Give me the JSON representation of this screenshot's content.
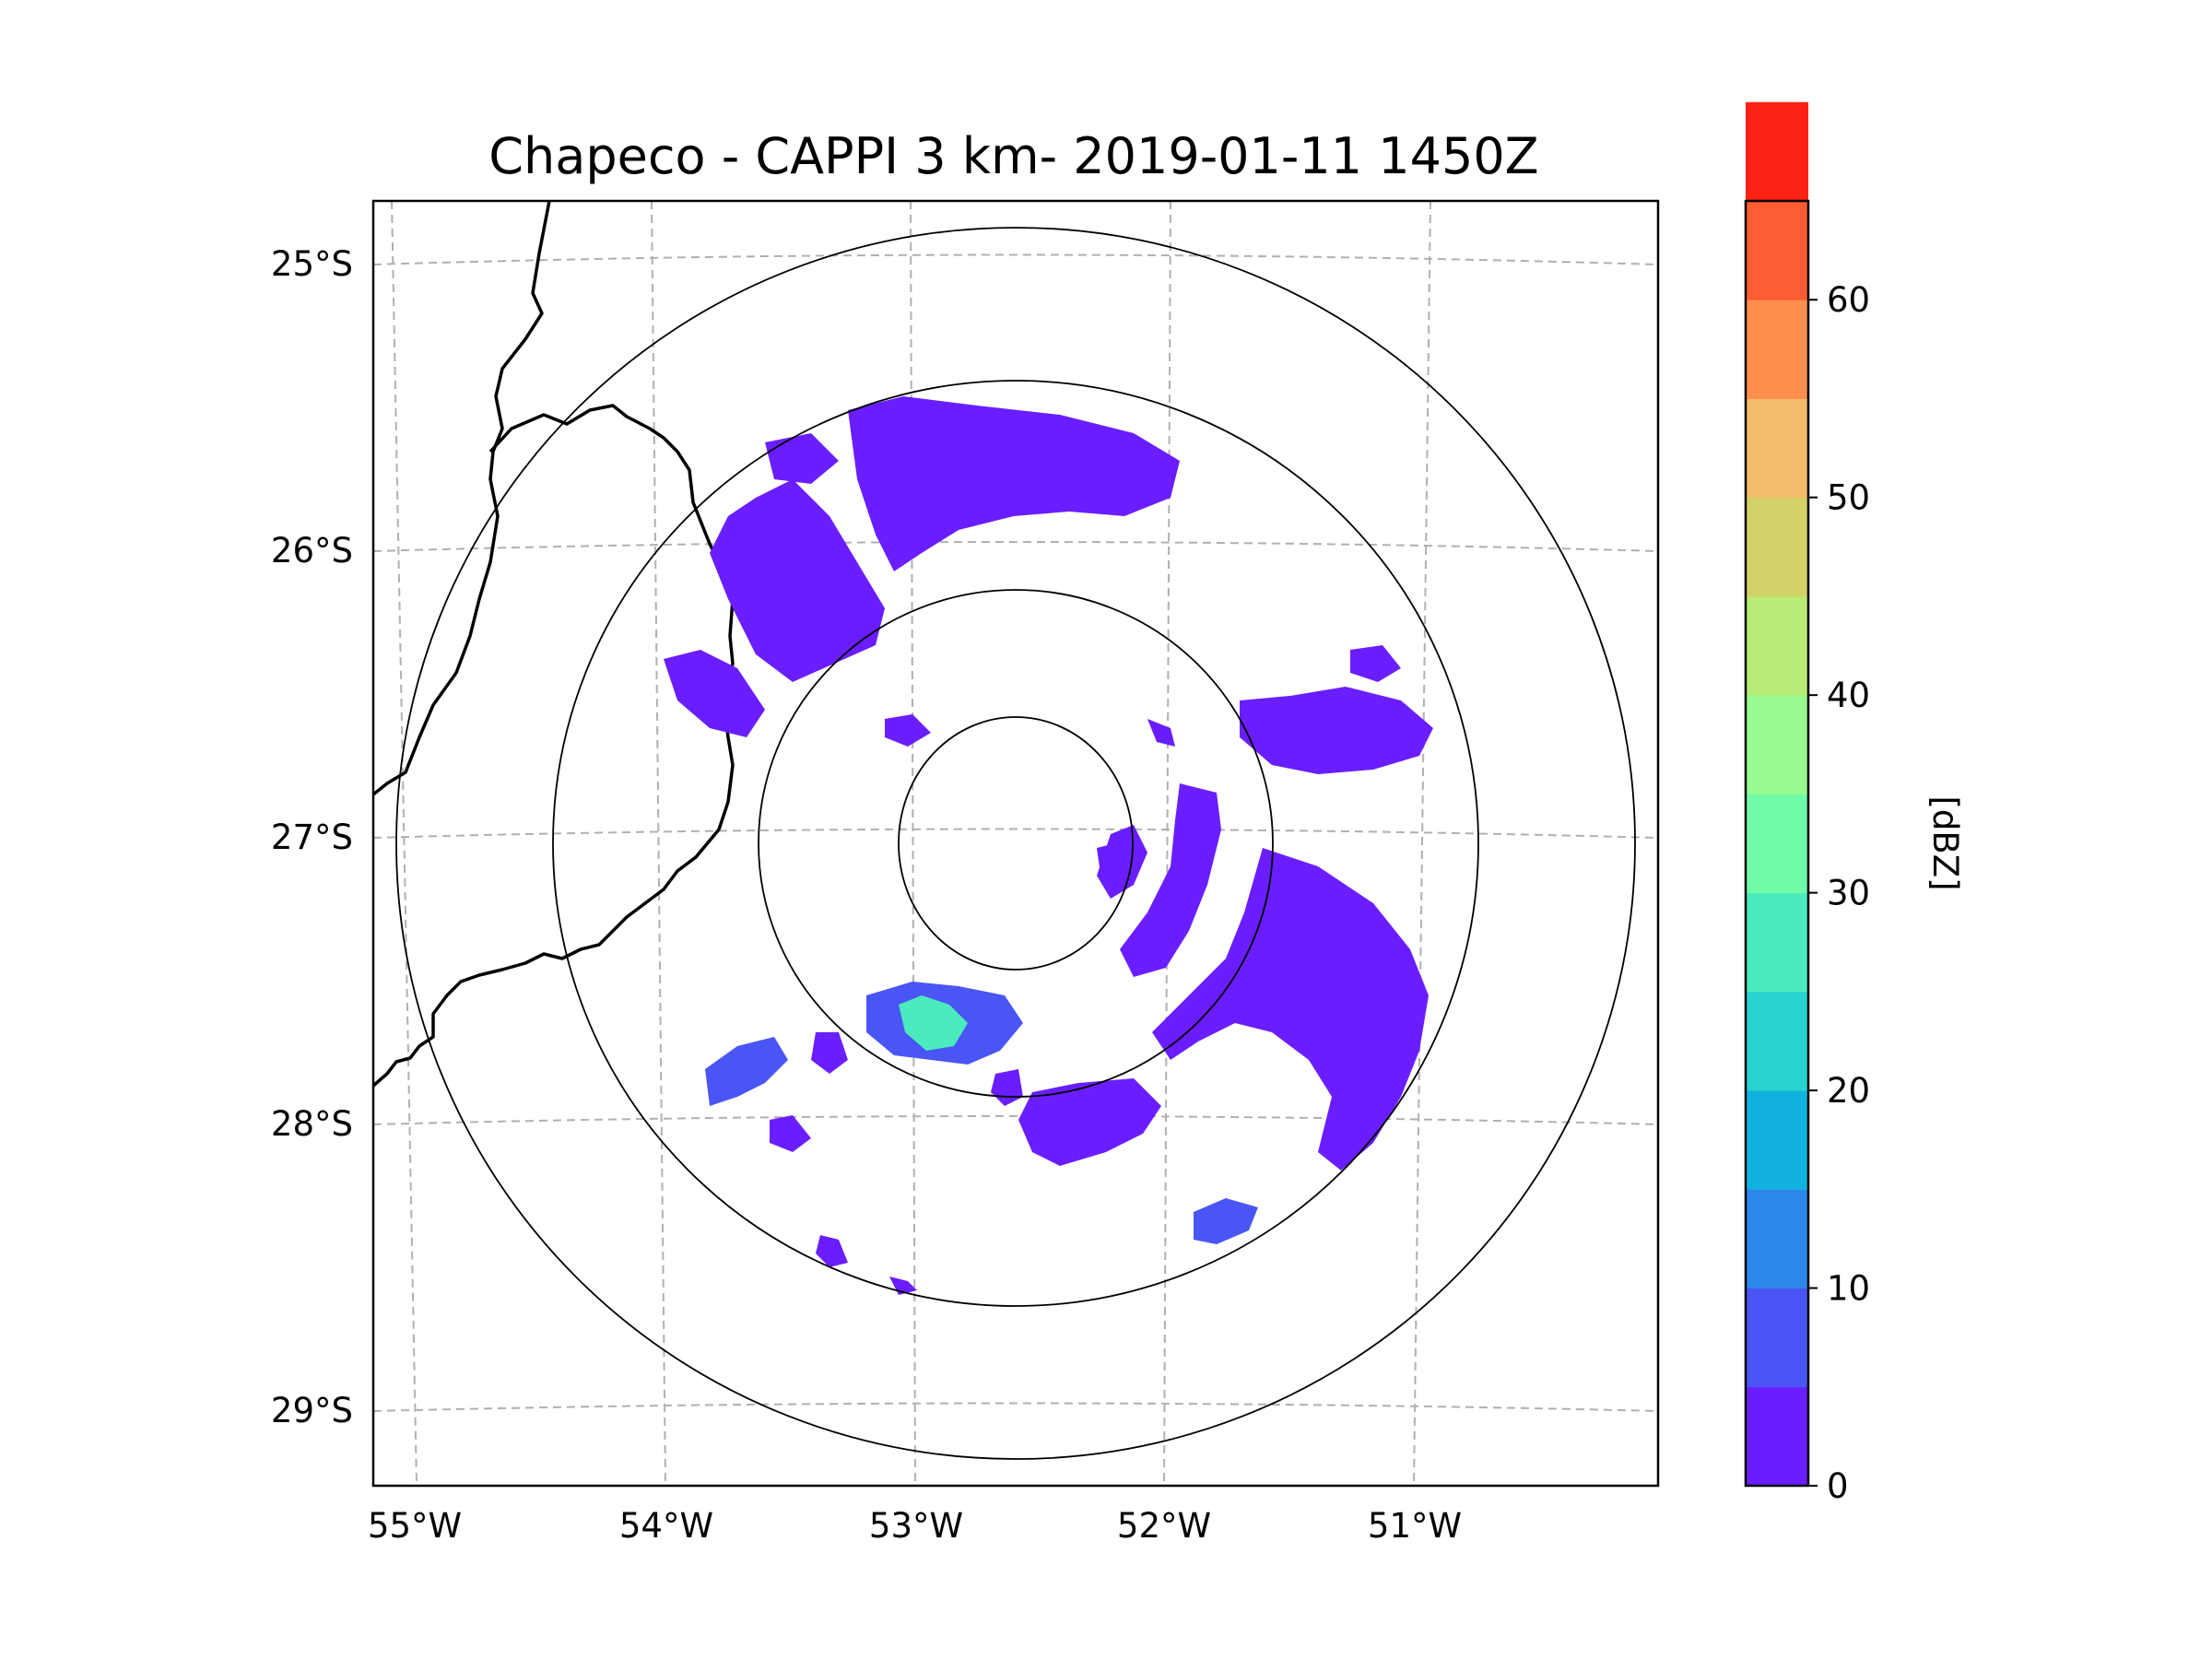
{
  "title": "Chapeco - CAPPI 3 km- 2019-01-11 1450Z",
  "map": {
    "lon_labels": [
      "55°W",
      "54°W",
      "53°W",
      "52°W",
      "51°W"
    ],
    "lat_labels": [
      "25°S",
      "26°S",
      "27°S",
      "28°S",
      "29°S"
    ],
    "range_rings_count": 4,
    "gridline_style": "dashed gray",
    "coastline_color": "#000000"
  },
  "colorbar": {
    "label": "[dBZ]",
    "ticks": [
      "0",
      "10",
      "20",
      "30",
      "40",
      "50",
      "60"
    ],
    "min": 0,
    "max": 65,
    "step": 5,
    "colors": [
      "#6a1eff",
      "#4a55f5",
      "#2d86ea",
      "#12b2de",
      "#29d3d0",
      "#4bebbd",
      "#6ffba8",
      "#97fb8f",
      "#b9ec77",
      "#d3d26a",
      "#f3bc6b",
      "#fe8f4f",
      "#fe5c32",
      "#fe2116"
    ]
  },
  "echo_colors": {
    "weak": "#6a1eff",
    "moderate": "#4a55f5",
    "strong": "#2d86ea",
    "core": "#4bebbd"
  }
}
